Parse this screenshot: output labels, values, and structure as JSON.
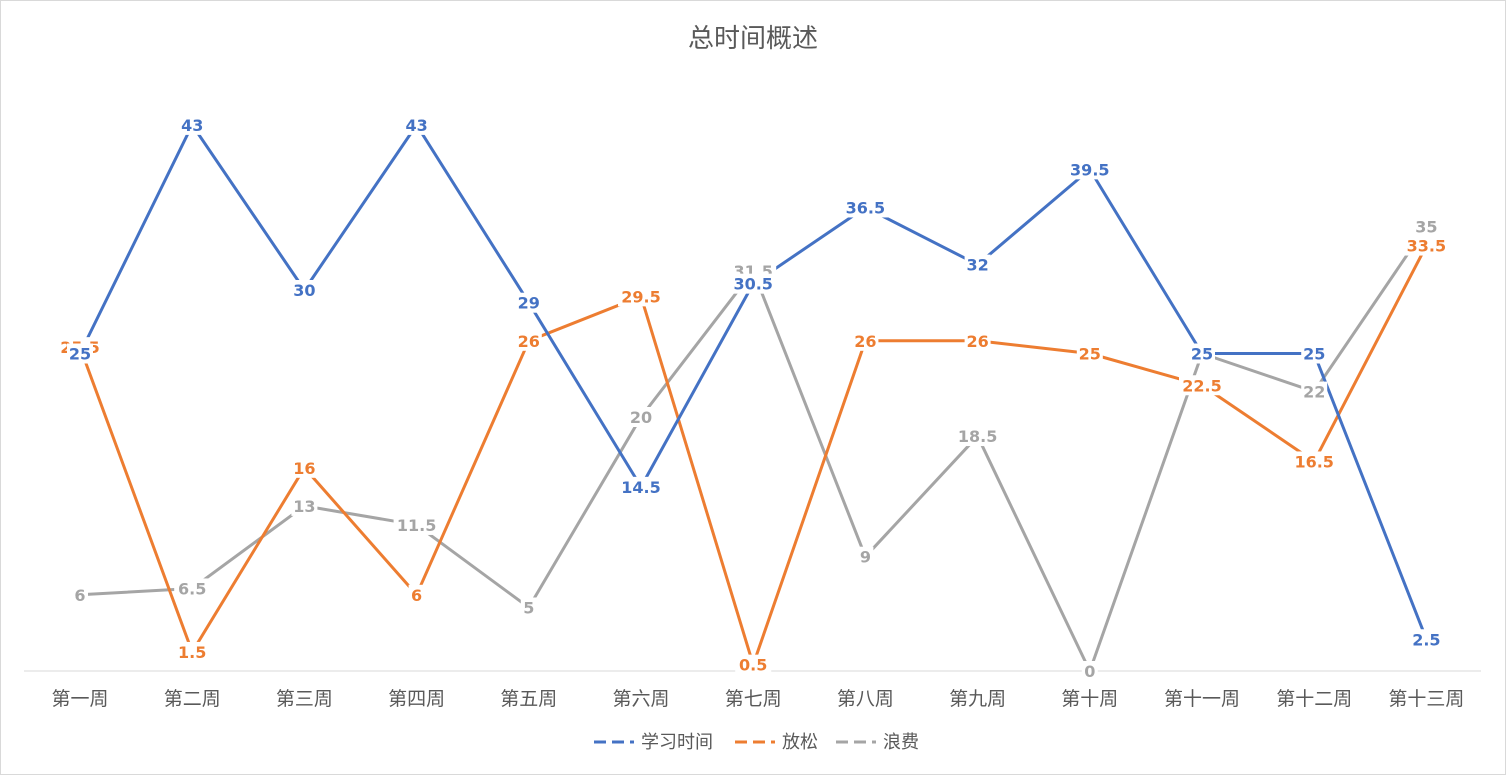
{
  "chart_data": {
    "type": "line",
    "title": "总时间概述",
    "categories": [
      "第一周",
      "第二周",
      "第三周",
      "第四周",
      "第五周",
      "第六周",
      "第七周",
      "第八周",
      "第九周",
      "第十周",
      "第十一周",
      "第十二周",
      "第十三周"
    ],
    "ylim": [
      0,
      45
    ],
    "grid": false,
    "legend": "bottom",
    "series": [
      {
        "name": "学习时间",
        "color": "#4472c4",
        "values": [
          25,
          43,
          30,
          43,
          29,
          14.5,
          30.5,
          36.5,
          32,
          39.5,
          25,
          25,
          2.5
        ]
      },
      {
        "name": "放松",
        "color": "#ed7d31",
        "values": [
          25.5,
          1.5,
          16,
          6,
          26,
          29.5,
          0.5,
          26,
          26,
          25,
          22.5,
          16.5,
          33.5
        ]
      },
      {
        "name": "浪费",
        "color": "#a5a5a5",
        "values": [
          6,
          6.5,
          13,
          11.5,
          5,
          20,
          31.5,
          9,
          18.5,
          0,
          25,
          22,
          35
        ]
      }
    ]
  }
}
